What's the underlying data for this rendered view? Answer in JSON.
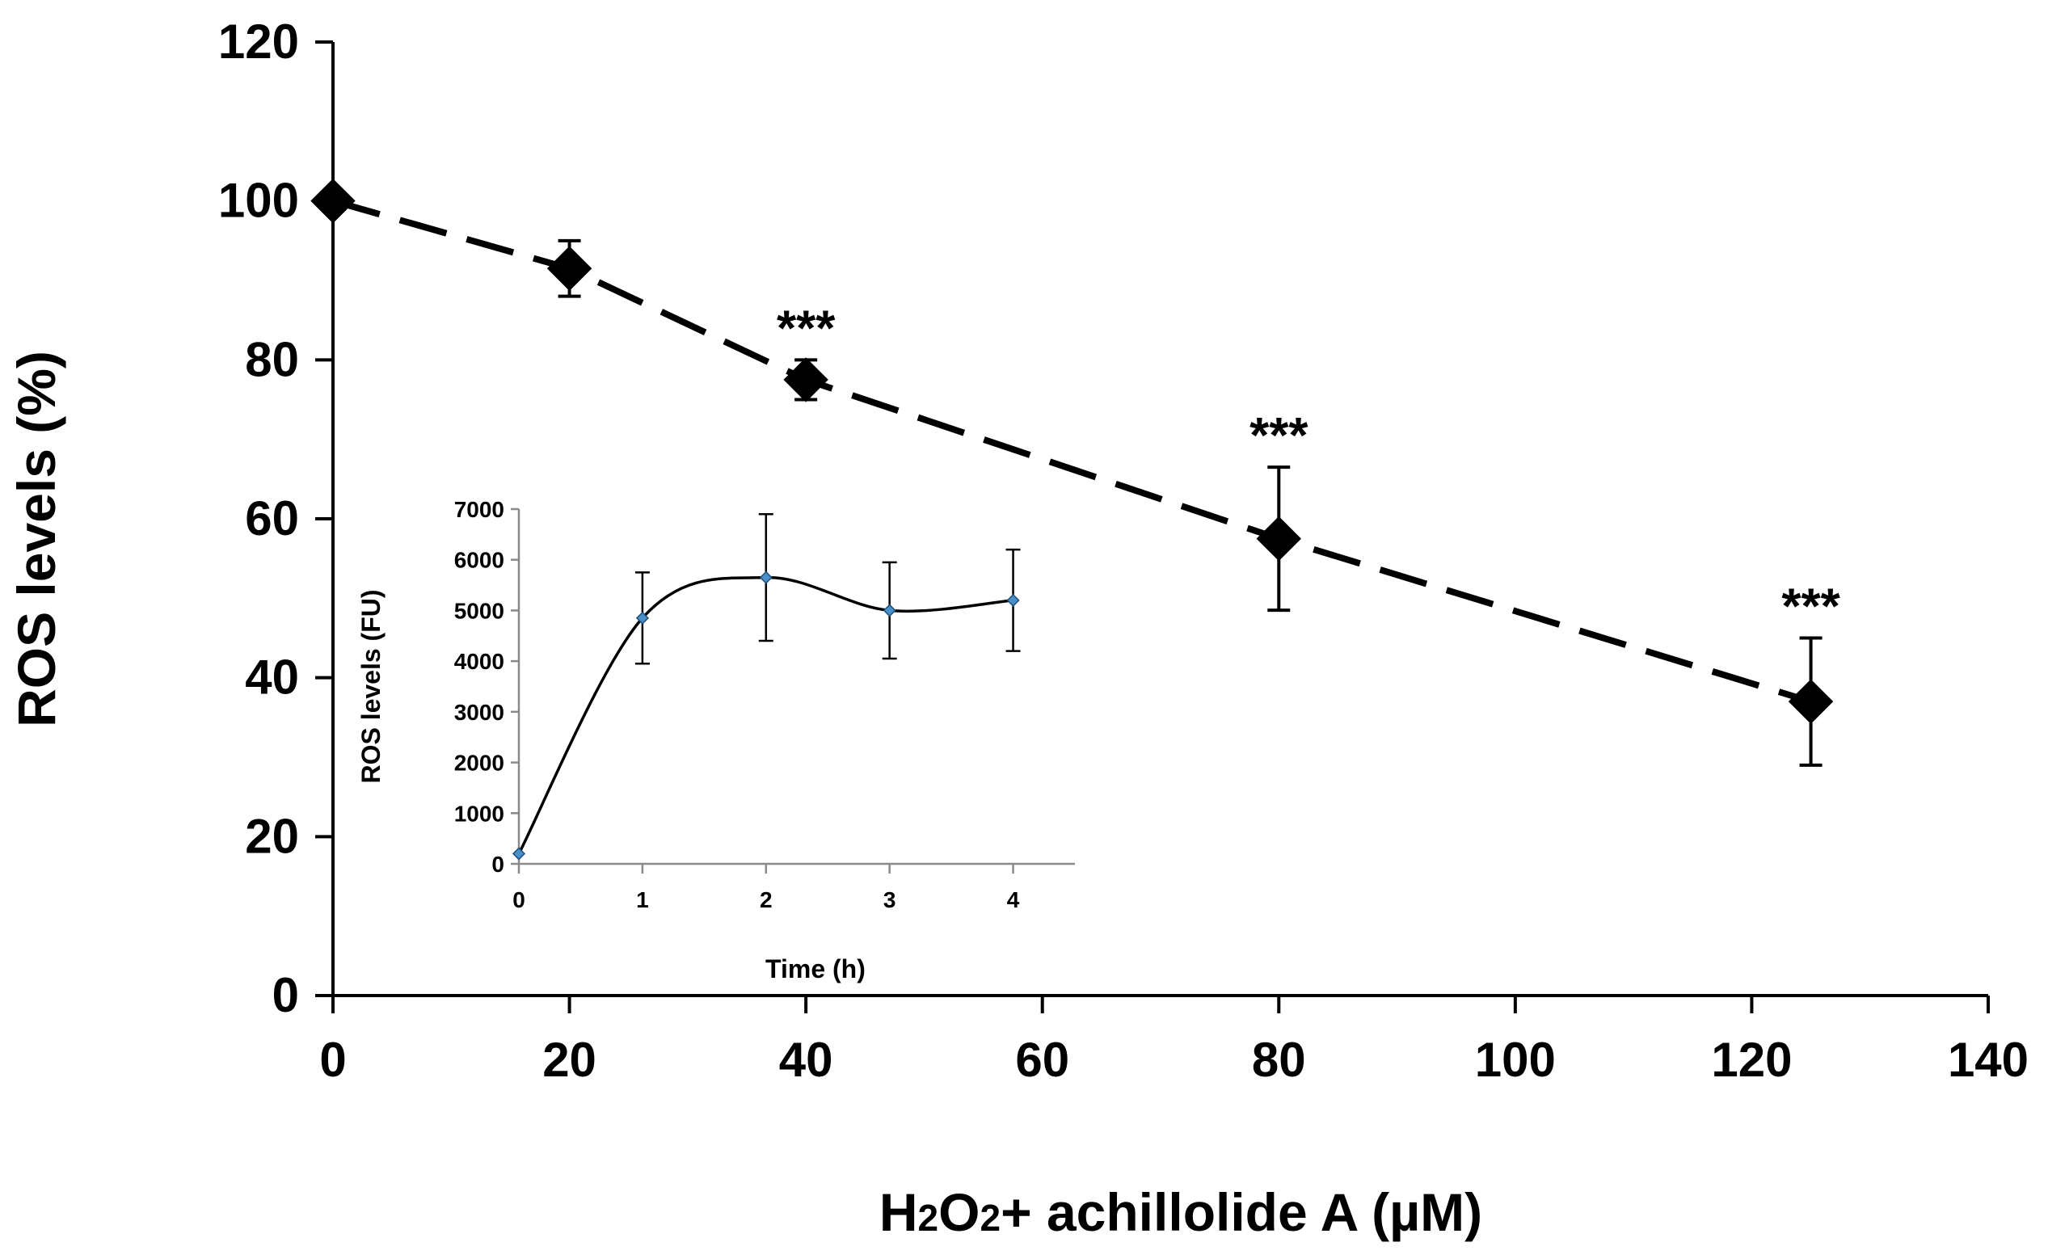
{
  "chart_data": [
    {
      "type": "line",
      "name": "main",
      "title": "",
      "xlabel": "H2O2+ achillolide A (µM)",
      "xlabel_parts": [
        "H",
        "2",
        "O",
        "2",
        "+ achillolide A (µM)"
      ],
      "ylabel": "ROS levels (%)",
      "xlim": [
        0,
        140
      ],
      "ylim": [
        0,
        120
      ],
      "xticks": [
        "0",
        "20",
        "40",
        "60",
        "80",
        "100",
        "120",
        "140"
      ],
      "yticks": [
        "0",
        "20",
        "40",
        "60",
        "80",
        "100",
        "120"
      ],
      "grid": false,
      "line_style": "dashed",
      "marker": "diamond",
      "marker_color": "#000000",
      "series": [
        {
          "name": "ROS levels",
          "x": [
            0,
            20,
            40,
            80,
            125
          ],
          "values": [
            100,
            91.5,
            77.5,
            57.5,
            37
          ],
          "error": [
            0,
            3.5,
            2.5,
            9,
            8
          ],
          "annotations": [
            "",
            "",
            "***",
            "***",
            "***"
          ]
        }
      ]
    },
    {
      "type": "line",
      "name": "inset",
      "title": "",
      "xlabel": "Time (h)",
      "ylabel": "ROS levels (FU)",
      "xlim": [
        0,
        4.5
      ],
      "ylim": [
        0,
        7000
      ],
      "xticks": [
        "0",
        "1",
        "2",
        "3",
        "4"
      ],
      "yticks": [
        "0",
        "1000",
        "2000",
        "3000",
        "4000",
        "5000",
        "6000",
        "7000"
      ],
      "grid": false,
      "line_style": "smooth",
      "marker": "diamond",
      "marker_color": "#4a90c8",
      "series": [
        {
          "name": "ROS levels",
          "x": [
            0,
            1,
            2,
            3,
            4
          ],
          "values": [
            200,
            4850,
            5650,
            5000,
            5200
          ],
          "error": [
            0,
            900,
            1250,
            950,
            1000
          ]
        }
      ]
    }
  ]
}
